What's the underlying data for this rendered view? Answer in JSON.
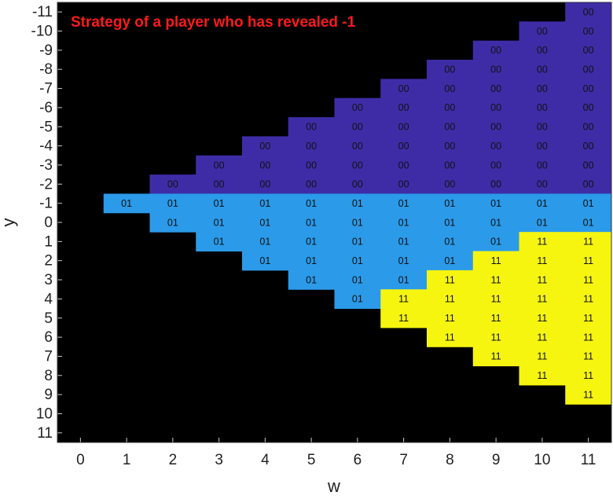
{
  "chart_data": {
    "type": "heatmap",
    "title": "Strategy of a player who has revealed -1",
    "xlabel": "w",
    "ylabel": "y",
    "xlim": [
      -0.5,
      11.5
    ],
    "ylim": [
      11.5,
      -11.5
    ],
    "xticks": [
      0,
      1,
      2,
      3,
      4,
      5,
      6,
      7,
      8,
      9,
      10,
      11
    ],
    "yticks": [
      -11,
      -10,
      -9,
      -8,
      -7,
      -6,
      -5,
      -4,
      -3,
      -2,
      -1,
      0,
      1,
      2,
      3,
      4,
      5,
      6,
      7,
      8,
      9,
      10,
      11
    ],
    "background": "#000000",
    "colors": {
      "00": "#3e2ca7",
      "01": "#2b9ae9",
      "11": "#f5f510"
    },
    "cells": [
      [
        null,
        null,
        null,
        null,
        null,
        null,
        null,
        null,
        null,
        null,
        null,
        "00"
      ],
      [
        null,
        null,
        null,
        null,
        null,
        null,
        null,
        null,
        null,
        null,
        "00",
        "00"
      ],
      [
        null,
        null,
        null,
        null,
        null,
        null,
        null,
        null,
        null,
        "00",
        "00",
        "00"
      ],
      [
        null,
        null,
        null,
        null,
        null,
        null,
        null,
        null,
        "00",
        "00",
        "00",
        "00"
      ],
      [
        null,
        null,
        null,
        null,
        null,
        null,
        null,
        "00",
        "00",
        "00",
        "00",
        "00"
      ],
      [
        null,
        null,
        null,
        null,
        null,
        null,
        "00",
        "00",
        "00",
        "00",
        "00",
        "00"
      ],
      [
        null,
        null,
        null,
        null,
        null,
        "00",
        "00",
        "00",
        "00",
        "00",
        "00",
        "00"
      ],
      [
        null,
        null,
        null,
        null,
        "00",
        "00",
        "00",
        "00",
        "00",
        "00",
        "00",
        "00"
      ],
      [
        null,
        null,
        null,
        "00",
        "00",
        "00",
        "00",
        "00",
        "00",
        "00",
        "00",
        "00"
      ],
      [
        null,
        null,
        "00",
        "00",
        "00",
        "00",
        "00",
        "00",
        "00",
        "00",
        "00",
        "00"
      ],
      [
        null,
        "01",
        "01",
        "01",
        "01",
        "01",
        "01",
        "01",
        "01",
        "01",
        "01",
        "01"
      ],
      [
        null,
        null,
        "01",
        "01",
        "01",
        "01",
        "01",
        "01",
        "01",
        "01",
        "01",
        "01"
      ],
      [
        null,
        null,
        null,
        "01",
        "01",
        "01",
        "01",
        "01",
        "01",
        "01",
        "11",
        "11"
      ],
      [
        null,
        null,
        null,
        null,
        "01",
        "01",
        "01",
        "01",
        "01",
        "11",
        "11",
        "11"
      ],
      [
        null,
        null,
        null,
        null,
        null,
        "01",
        "01",
        "01",
        "11",
        "11",
        "11",
        "11"
      ],
      [
        null,
        null,
        null,
        null,
        null,
        null,
        "01",
        "11",
        "11",
        "11",
        "11",
        "11"
      ],
      [
        null,
        null,
        null,
        null,
        null,
        null,
        null,
        "11",
        "11",
        "11",
        "11",
        "11"
      ],
      [
        null,
        null,
        null,
        null,
        null,
        null,
        null,
        null,
        "11",
        "11",
        "11",
        "11"
      ],
      [
        null,
        null,
        null,
        null,
        null,
        null,
        null,
        null,
        null,
        "11",
        "11",
        "11"
      ],
      [
        null,
        null,
        null,
        null,
        null,
        null,
        null,
        null,
        null,
        null,
        "11",
        "11"
      ],
      [
        null,
        null,
        null,
        null,
        null,
        null,
        null,
        null,
        null,
        null,
        null,
        "11"
      ],
      [
        null,
        null,
        null,
        null,
        null,
        null,
        null,
        null,
        null,
        null,
        null,
        null
      ],
      [
        null,
        null,
        null,
        null,
        null,
        null,
        null,
        null,
        null,
        null,
        null,
        null
      ]
    ]
  }
}
